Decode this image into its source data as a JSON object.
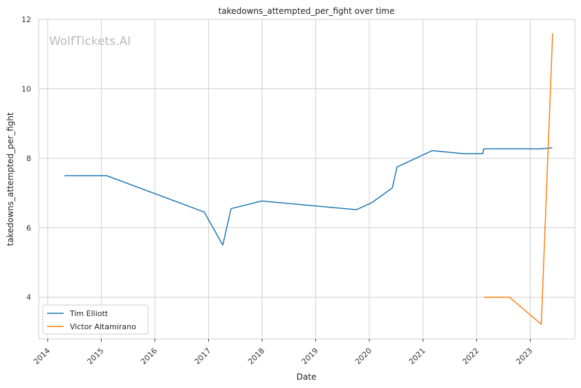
{
  "chart_data": {
    "type": "line",
    "title": "takedowns_attempted_per_fight over time",
    "xlabel": "Date",
    "ylabel": "takedowns_attempted_per_fight",
    "watermark": "WolfTickets.AI",
    "xlim": [
      "2013-11-01",
      "2023-11-01"
    ],
    "ylim": [
      2.8,
      12
    ],
    "x_ticks": [
      "2014-01-01",
      "2015-01-01",
      "2016-01-01",
      "2017-01-01",
      "2018-01-01",
      "2019-01-01",
      "2020-01-01",
      "2021-01-01",
      "2022-01-01",
      "2023-01-01"
    ],
    "x_tick_labels": [
      "2014",
      "2015",
      "2016",
      "2017",
      "2018",
      "2019",
      "2020",
      "2021",
      "2022",
      "2023"
    ],
    "y_ticks": [
      4,
      6,
      8,
      10,
      12
    ],
    "y_tick_labels": [
      "4",
      "6",
      "8",
      "10",
      "12"
    ],
    "grid": true,
    "legend_position": "lower-left",
    "series": [
      {
        "name": "Tim Elliott",
        "color": "#1f77b4",
        "x": [
          "2014-04-26",
          "2015-02-07",
          "2016-12-03",
          "2017-04-08",
          "2017-06-03",
          "2017-12-30",
          "2019-10-05",
          "2020-01-18",
          "2020-06-06",
          "2020-07-08",
          "2021-03-05",
          "2021-10-06",
          "2022-02-12",
          "2022-02-19",
          "2023-03-11",
          "2023-06-01"
        ],
        "values": [
          7.5,
          7.5,
          6.45,
          5.5,
          6.55,
          6.77,
          6.52,
          6.72,
          7.15,
          7.75,
          8.22,
          8.13,
          8.13,
          8.27,
          8.27,
          8.3
        ]
      },
      {
        "name": "Victor Altamirano",
        "color": "#ff7f0e",
        "x": [
          "2022-02-19",
          "2022-08-13",
          "2023-03-18",
          "2023-06-03"
        ],
        "values": [
          4.0,
          4.0,
          3.22,
          11.6
        ]
      }
    ]
  }
}
